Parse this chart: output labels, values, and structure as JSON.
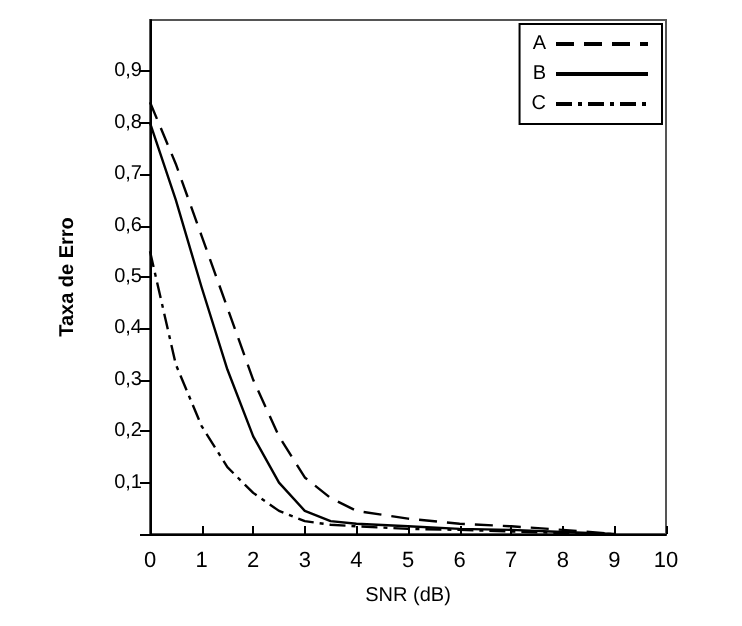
{
  "chart_data": {
    "type": "line",
    "xlabel": "SNR (dB)",
    "ylabel": "Taxa de Erro",
    "xlim": [
      0,
      10
    ],
    "xticks": [
      0,
      1,
      2,
      3,
      4,
      5,
      6,
      7,
      8,
      9,
      10
    ],
    "ylim": [
      0,
      1
    ],
    "yticks": [
      {
        "value": 0,
        "label": null
      },
      {
        "value": 0.1,
        "label": "0,1"
      },
      {
        "value": 0.2,
        "label": "0,2"
      },
      {
        "value": 0.3,
        "label": "0,3"
      },
      {
        "value": 0.4,
        "label": "0,4"
      },
      {
        "value": 0.5,
        "label": "0,5"
      },
      {
        "value": 0.6,
        "label": "0,6"
      },
      {
        "value": 0.7,
        "label": "0,7"
      },
      {
        "value": 0.8,
        "label": "0,8"
      },
      {
        "value": 0.9,
        "label": "0,9"
      }
    ],
    "x": [
      0,
      0.5,
      1,
      1.5,
      2,
      2.5,
      3,
      3.5,
      4,
      5,
      6,
      7,
      8,
      9
    ],
    "grid": false,
    "legend": "top right",
    "marker": "none",
    "series": [
      {
        "name": "A",
        "color": "#000000",
        "line_style": "dashed",
        "values": [
          0.84,
          0.72,
          0.58,
          0.44,
          0.3,
          0.19,
          0.11,
          0.07,
          0.045,
          0.03,
          0.02,
          0.015,
          0.008,
          0
        ]
      },
      {
        "name": "B",
        "color": "#000000",
        "line_style": "solid",
        "values": [
          0.8,
          0.65,
          0.48,
          0.32,
          0.19,
          0.1,
          0.045,
          0.025,
          0.02,
          0.015,
          0.01,
          0.008,
          0.004,
          0
        ]
      },
      {
        "name": "C",
        "color": "#000000",
        "line_style": "dashdot",
        "values": [
          0.55,
          0.33,
          0.21,
          0.13,
          0.08,
          0.045,
          0.025,
          0.018,
          0.015,
          0.01,
          0.008,
          0.005,
          0.002,
          0
        ]
      }
    ]
  }
}
